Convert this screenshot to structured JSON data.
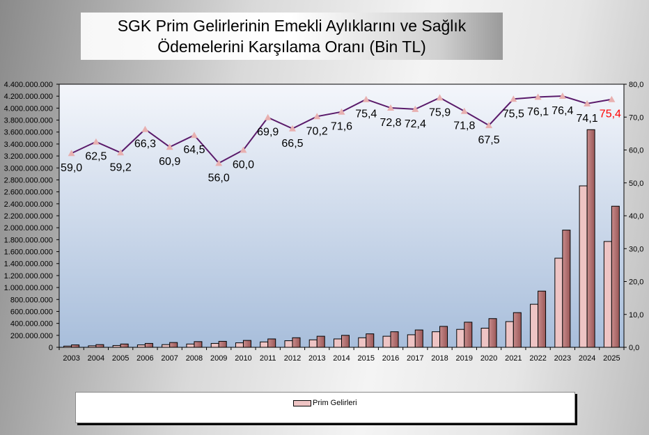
{
  "chart_data": {
    "type": "bar+line",
    "title": "SGK Prim Gelirlerinin  Emekli Aylıklarını ve Sağlık Ödemelerini Karşılama Oranı (Bin TL)",
    "title_lines": [
      "SGK Prim Gelirlerinin  Emekli Aylıklarını ve Sağlık",
      "Ödemelerini Karşılama Oranı (Bin TL)"
    ],
    "categories": [
      "2003",
      "2004",
      "2005",
      "2006",
      "2007",
      "2008",
      "2009",
      "2010",
      "2011",
      "2012",
      "2013",
      "2014",
      "2015",
      "2016",
      "2017",
      "2018",
      "2019",
      "2020",
      "2021",
      "2022",
      "2023",
      "2024",
      "2025"
    ],
    "series": [
      {
        "name": "Prim Gelirleri",
        "type": "bar",
        "axis": "left",
        "color": "#eec4c4",
        "values": [
          20000000,
          25000000,
          30000000,
          40000000,
          45000000,
          55000000,
          65000000,
          75000000,
          90000000,
          110000000,
          125000000,
          140000000,
          160000000,
          185000000,
          210000000,
          260000000,
          300000000,
          320000000,
          430000000,
          720000000,
          1490000000,
          2700000000,
          1770000000
        ]
      },
      {
        "type": "bar",
        "axis": "left",
        "color": "#b06a6a",
        "values": [
          40000000,
          45000000,
          55000000,
          65000000,
          80000000,
          95000000,
          100000000,
          115000000,
          140000000,
          160000000,
          185000000,
          200000000,
          225000000,
          260000000,
          290000000,
          350000000,
          420000000,
          480000000,
          580000000,
          940000000,
          1960000000,
          3640000000,
          2360000000
        ]
      },
      {
        "type": "line",
        "axis": "right",
        "color": "#5a1a6a",
        "marker_color": "#e8b0b0",
        "values": [
          59.0,
          62.5,
          59.2,
          66.3,
          60.9,
          64.5,
          56.0,
          60.0,
          69.9,
          66.5,
          70.2,
          71.6,
          75.4,
          72.8,
          72.4,
          75.9,
          71.8,
          67.5,
          75.5,
          76.1,
          76.4,
          74.1,
          75.4
        ],
        "labels": [
          "59,0",
          "62,5",
          "59,2",
          "66,3",
          "60,9",
          "64,5",
          "56,0",
          "60,0",
          "69,9",
          "66,5",
          "70,2",
          "71,6",
          "75,4",
          "72,8",
          "72,4",
          "75,9",
          "71,8",
          "67,5",
          "75,5",
          "76,1",
          "76,4",
          "74,1",
          "75,4"
        ],
        "highlight_last_label_color": "#ff0000"
      }
    ],
    "y_left": {
      "min": 0,
      "max": 4400000000,
      "step": 200000000,
      "tick_labels": [
        "0",
        "200.000.000",
        "400.000.000",
        "600.000.000",
        "800.000.000",
        "1.000.000.000",
        "1.200.000.000",
        "1.400.000.000",
        "1.600.000.000",
        "1.800.000.000",
        "2.000.000.000",
        "2.200.000.000",
        "2.400.000.000",
        "2.600.000.000",
        "2.800.000.000",
        "3.000.000.000",
        "3.200.000.000",
        "3.400.000.000",
        "3.600.000.000",
        "3.800.000.000",
        "4.000.000.000",
        "4.200.000.000",
        "4.400.000.000"
      ]
    },
    "y_right": {
      "min": 0,
      "max": 80,
      "step": 10,
      "tick_labels": [
        "0,0",
        "10,0",
        "20,0",
        "30,0",
        "40,0",
        "50,0",
        "60,0",
        "70,0",
        "80,0"
      ]
    },
    "grid": false,
    "legend_position": "bottom",
    "legend": [
      "Prim Gelirleri"
    ]
  }
}
